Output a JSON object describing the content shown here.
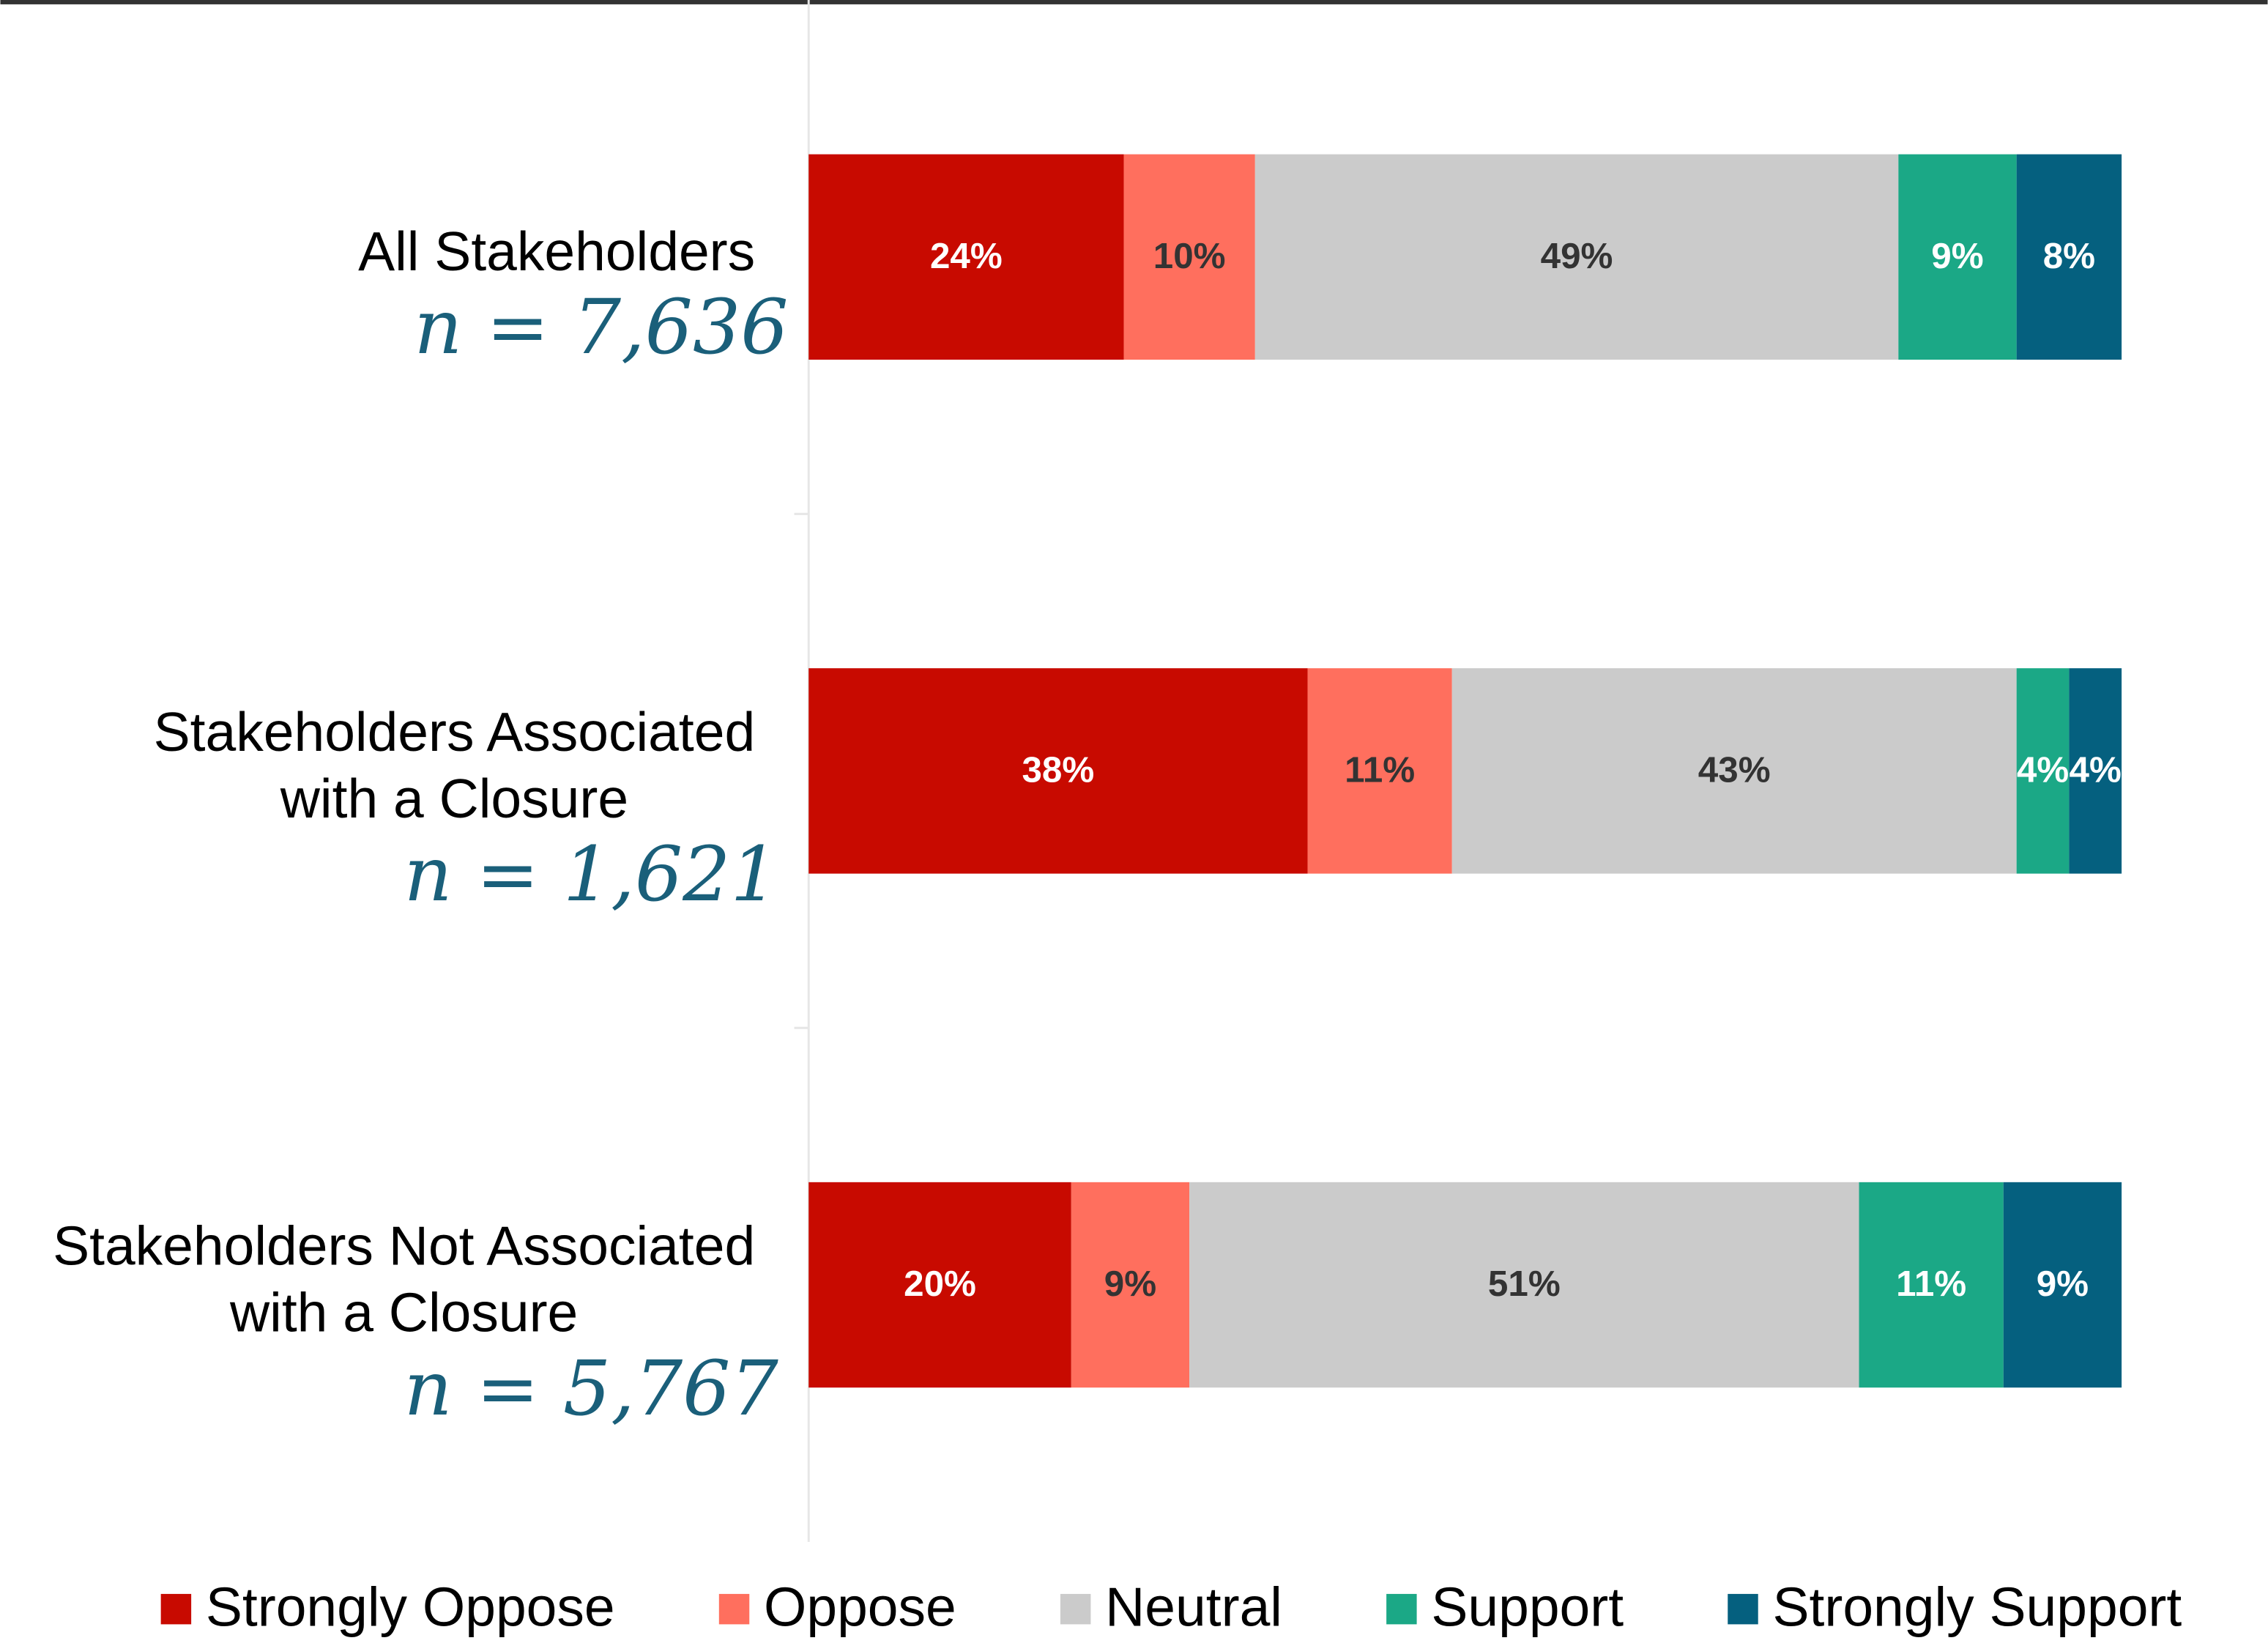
{
  "chart_data": {
    "type": "stacked_bar_horizontal",
    "categories": [
      "All Stakeholders",
      "Stakeholders Associated with a Closure",
      "Stakeholders Not Associated with a Closure"
    ],
    "annotations": [
      "n = 7,636",
      "n = 1,621",
      "n = 5,767"
    ],
    "xlim": [
      0,
      100
    ],
    "legend": "bottom",
    "series": [
      {
        "name": "Strongly Oppose",
        "color": "#c80a00",
        "values": [
          24,
          38,
          20
        ],
        "value_labels": [
          "24%",
          "38%",
          "20%"
        ]
      },
      {
        "name": "Oppose",
        "color": "#ff6f5e",
        "values": [
          10,
          11,
          9
        ],
        "value_labels": [
          "10%",
          "11%",
          "9%"
        ]
      },
      {
        "name": "Neutral",
        "color": "#cbcbcb",
        "values": [
          49,
          43,
          51
        ],
        "value_labels": [
          "49%",
          "43%",
          "51%"
        ]
      },
      {
        "name": "Support",
        "color": "#1ba886",
        "values": [
          9,
          4,
          11
        ],
        "value_labels": [
          "9%",
          "4%",
          "11%"
        ]
      },
      {
        "name": "Strongly Support",
        "color": "#05607f",
        "values": [
          8,
          4,
          9
        ],
        "value_labels": [
          "8%",
          "4%",
          "9%"
        ]
      }
    ]
  }
}
